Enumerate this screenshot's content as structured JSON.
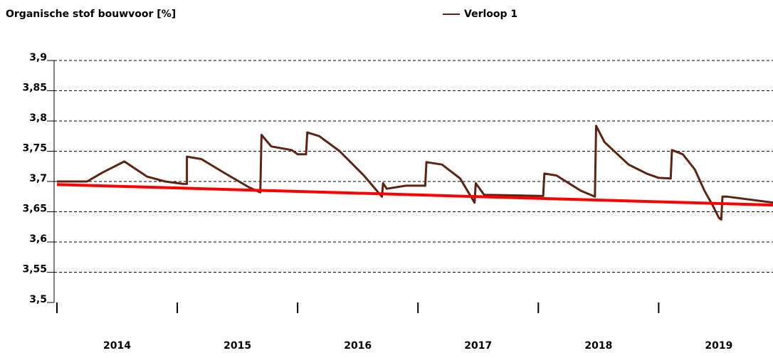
{
  "chart_data": {
    "type": "line",
    "title": "Organische stof bouwvoor [%]",
    "xlim": [
      2014,
      2019.95
    ],
    "xticks": [
      2014,
      2015,
      2016,
      2017,
      2018,
      2019
    ],
    "ylim": [
      3.5,
      3.9
    ],
    "yticks": [
      {
        "value": 3.5,
        "label": "3,5"
      },
      {
        "value": 3.55,
        "label": "3,55"
      },
      {
        "value": 3.6,
        "label": "3,6"
      },
      {
        "value": 3.65,
        "label": "3,65"
      },
      {
        "value": 3.7,
        "label": "3,7"
      },
      {
        "value": 3.75,
        "label": "3,75"
      },
      {
        "value": 3.8,
        "label": "3,8"
      },
      {
        "value": 3.85,
        "label": "3,85"
      },
      {
        "value": 3.9,
        "label": "3,9"
      }
    ],
    "grid": true,
    "series": [
      {
        "name": "Verloop 1",
        "color": "#5c2415",
        "x": [
          2014.0,
          2014.25,
          2014.38,
          2014.56,
          2014.75,
          2014.9,
          2015.05,
          2015.08,
          2015.08,
          2015.2,
          2015.4,
          2015.6,
          2015.69,
          2015.7,
          2015.78,
          2015.95,
          2016.0,
          2016.07,
          2016.08,
          2016.18,
          2016.35,
          2016.55,
          2016.7,
          2016.71,
          2016.74,
          2016.9,
          2017.06,
          2017.07,
          2017.2,
          2017.35,
          2017.47,
          2017.48,
          2017.55,
          2017.8,
          2018.04,
          2018.05,
          2018.15,
          2018.35,
          2018.47,
          2018.48,
          2018.55,
          2018.75,
          2018.9,
          2019.0,
          2019.1,
          2019.11,
          2019.2,
          2019.3,
          2019.38,
          2019.45,
          2019.5,
          2019.52,
          2019.53,
          2019.57,
          2019.95
        ],
        "values": [
          3.7,
          3.7,
          3.715,
          3.733,
          3.708,
          3.7,
          3.696,
          3.696,
          3.741,
          3.737,
          3.713,
          3.69,
          3.682,
          3.777,
          3.758,
          3.752,
          3.745,
          3.745,
          3.781,
          3.775,
          3.75,
          3.71,
          3.675,
          3.697,
          3.688,
          3.693,
          3.693,
          3.732,
          3.728,
          3.705,
          3.665,
          3.697,
          3.678,
          3.677,
          3.676,
          3.713,
          3.71,
          3.685,
          3.675,
          3.792,
          3.765,
          3.728,
          3.713,
          3.706,
          3.705,
          3.752,
          3.745,
          3.72,
          3.685,
          3.66,
          3.64,
          3.637,
          3.675,
          3.675,
          3.665
        ]
      },
      {
        "color": "#ff0000",
        "x": [
          2014.0,
          2019.95
        ],
        "values": [
          3.695,
          3.661
        ]
      }
    ]
  }
}
